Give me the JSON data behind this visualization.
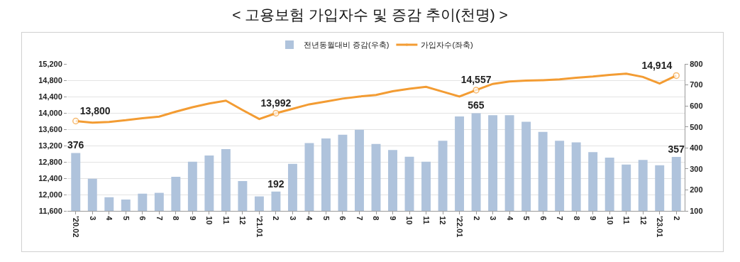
{
  "chart_data": {
    "type": "bar",
    "title": "< 고용보험 가입자수 및 증감 추이(천명) >",
    "categories": [
      "'20.02",
      "3",
      "4",
      "5",
      "6",
      "7",
      "8",
      "9",
      "10",
      "11",
      "12",
      "'21.01",
      "2",
      "3",
      "4",
      "5",
      "6",
      "7",
      "8",
      "9",
      "10",
      "11",
      "12",
      "'22.01",
      "2",
      "3",
      "4",
      "5",
      "6",
      "7",
      "8",
      "9",
      "10",
      "11",
      "12",
      "'23.01",
      "2"
    ],
    "series": [
      {
        "name": "전년동월대비 증감(우축)",
        "axis": "y2",
        "color": "#afc3dc",
        "values": [
          376,
          253,
          165,
          154,
          182,
          186,
          262,
          334,
          364,
          394,
          242,
          169,
          192,
          324,
          423,
          445,
          463,
          486,
          419,
          390,
          358,
          334,
          434,
          550,
          565,
          556,
          556,
          524,
          476,
          434,
          426,
          380,
          354,
          321,
          343,
          317,
          357
        ],
        "value_labels": [
          "376",
          null,
          null,
          null,
          null,
          null,
          null,
          null,
          null,
          null,
          null,
          null,
          "192",
          null,
          null,
          null,
          null,
          null,
          null,
          null,
          null,
          null,
          null,
          null,
          "565",
          null,
          null,
          null,
          null,
          null,
          null,
          null,
          null,
          null,
          null,
          null,
          "357"
        ]
      },
      {
        "name": "가입자수(좌축)",
        "type": "line",
        "color": "#f39c33",
        "values": [
          13800,
          13760,
          13780,
          13820,
          13870,
          13910,
          14030,
          14140,
          14230,
          14300,
          14070,
          13850,
          13992,
          14100,
          14210,
          14280,
          14350,
          14400,
          14440,
          14530,
          14590,
          14640,
          14520,
          14400,
          14557,
          14710,
          14770,
          14790,
          14800,
          14820,
          14860,
          14890,
          14930,
          14960,
          14880,
          14720,
          14914
        ],
        "value_labels": [
          "13,800",
          null,
          null,
          null,
          null,
          null,
          null,
          null,
          null,
          null,
          null,
          null,
          "13,992",
          null,
          null,
          null,
          null,
          null,
          null,
          null,
          null,
          null,
          null,
          null,
          "14,557",
          null,
          null,
          null,
          null,
          null,
          null,
          null,
          null,
          null,
          null,
          null,
          "14,914"
        ]
      }
    ],
    "ylim": [
      11600,
      15200
    ],
    "yticks": [
      {
        "value": 11600,
        "label": "11,600"
      },
      {
        "value": 12000,
        "label": "12,000"
      },
      {
        "value": 12400,
        "label": "12,400"
      },
      {
        "value": 12800,
        "label": "12,800"
      },
      {
        "value": 13200,
        "label": "13,200"
      },
      {
        "value": 13600,
        "label": "13,600"
      },
      {
        "value": 14000,
        "label": "14,000"
      },
      {
        "value": 14400,
        "label": "14,400"
      },
      {
        "value": 14800,
        "label": "14,800"
      },
      {
        "value": 15200,
        "label": "15,200"
      }
    ],
    "y2lim": [
      100,
      800
    ],
    "y2ticks": [
      100,
      200,
      300,
      400,
      500,
      600,
      700,
      800
    ],
    "grid": "y",
    "legend": "top"
  }
}
